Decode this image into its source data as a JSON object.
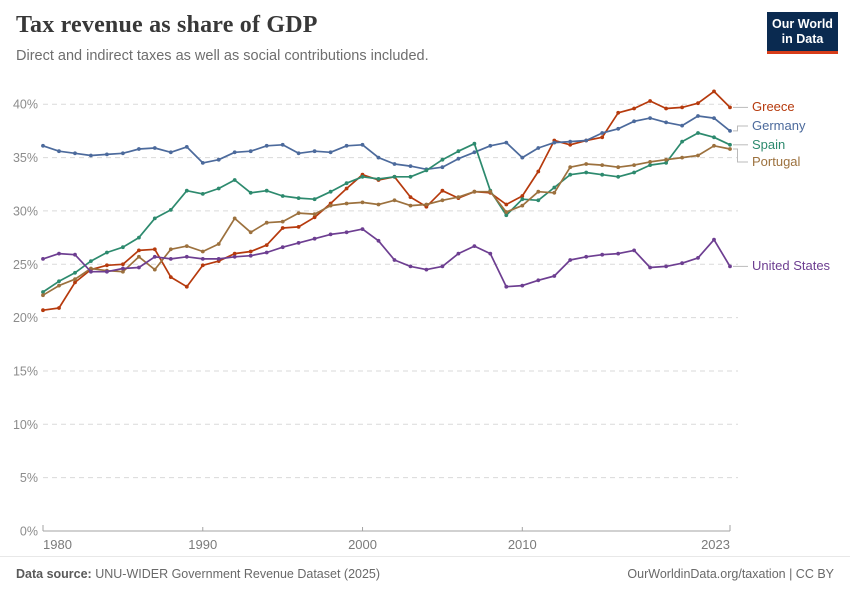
{
  "header": {
    "title": "Tax revenue as share of GDP",
    "subtitle": "Direct and indirect taxes as well as social contributions included."
  },
  "logo": {
    "line1": "Our World",
    "line2": "in Data",
    "bg_color": "#0a2a50",
    "accent_color": "#d73c19"
  },
  "chart_data": {
    "type": "line",
    "title": "Tax revenue as share of GDP",
    "xlabel": "",
    "ylabel": "",
    "x": [
      1980,
      1981,
      1982,
      1983,
      1984,
      1985,
      1986,
      1987,
      1988,
      1989,
      1990,
      1991,
      1992,
      1993,
      1994,
      1995,
      1996,
      1997,
      1998,
      1999,
      2000,
      2001,
      2002,
      2003,
      2004,
      2005,
      2006,
      2007,
      2008,
      2009,
      2010,
      2011,
      2012,
      2013,
      2014,
      2015,
      2016,
      2017,
      2018,
      2019,
      2020,
      2021,
      2022,
      2023
    ],
    "x_ticks": [
      1980,
      1990,
      2000,
      2010,
      2023
    ],
    "y_ticks": [
      0,
      5,
      10,
      15,
      20,
      25,
      30,
      35,
      40
    ],
    "y_tick_suffix": "%",
    "ylim": [
      0,
      42
    ],
    "grid": "horizontal-dashed",
    "legend_position": "right",
    "series": [
      {
        "name": "Greece",
        "color": "#B63A0D",
        "values": [
          20.7,
          20.9,
          23.3,
          24.5,
          24.9,
          25.0,
          26.3,
          26.4,
          23.8,
          22.9,
          24.9,
          25.3,
          26.0,
          26.2,
          26.8,
          28.4,
          28.5,
          29.4,
          30.7,
          32.1,
          33.4,
          32.9,
          33.2,
          31.3,
          30.4,
          31.9,
          31.2,
          31.8,
          31.7,
          30.6,
          31.4,
          33.7,
          36.6,
          36.2,
          36.6,
          36.9,
          39.2,
          39.6,
          40.3,
          39.6,
          39.7,
          40.1,
          41.2,
          39.7
        ]
      },
      {
        "name": "Germany",
        "color": "#4C6A9C",
        "values": [
          36.1,
          35.6,
          35.4,
          35.2,
          35.3,
          35.4,
          35.8,
          35.9,
          35.5,
          36.0,
          34.5,
          34.8,
          35.5,
          35.6,
          36.1,
          36.2,
          35.4,
          35.6,
          35.5,
          36.1,
          36.2,
          35.0,
          34.4,
          34.2,
          33.9,
          34.1,
          34.9,
          35.5,
          36.1,
          36.4,
          35.0,
          35.9,
          36.4,
          36.5,
          36.6,
          37.3,
          37.7,
          38.4,
          38.7,
          38.3,
          38.0,
          38.9,
          38.7,
          37.5
        ]
      },
      {
        "name": "Spain",
        "color": "#2D8A6E",
        "values": [
          22.4,
          23.4,
          24.2,
          25.3,
          26.1,
          26.6,
          27.5,
          29.3,
          30.1,
          31.9,
          31.6,
          32.1,
          32.9,
          31.7,
          31.9,
          31.4,
          31.2,
          31.1,
          31.8,
          32.6,
          33.2,
          33.0,
          33.2,
          33.2,
          33.8,
          34.8,
          35.6,
          36.3,
          31.9,
          29.6,
          31.1,
          31.0,
          32.2,
          33.4,
          33.6,
          33.4,
          33.2,
          33.6,
          34.3,
          34.5,
          36.5,
          37.3,
          36.9,
          36.2
        ]
      },
      {
        "name": "Portugal",
        "color": "#9C713E",
        "values": [
          22.1,
          23.0,
          23.6,
          24.6,
          24.4,
          24.3,
          25.7,
          24.5,
          26.4,
          26.7,
          26.2,
          26.9,
          29.3,
          28.0,
          28.9,
          29.0,
          29.8,
          29.7,
          30.5,
          30.7,
          30.8,
          30.6,
          31.0,
          30.5,
          30.6,
          31.0,
          31.3,
          31.8,
          31.8,
          29.9,
          30.5,
          31.8,
          31.7,
          34.1,
          34.4,
          34.3,
          34.1,
          34.3,
          34.6,
          34.8,
          35.0,
          35.2,
          36.1,
          35.8
        ]
      },
      {
        "name": "United States",
        "color": "#6D3E91",
        "values": [
          25.5,
          26.0,
          25.9,
          24.3,
          24.3,
          24.6,
          24.7,
          25.7,
          25.5,
          25.7,
          25.5,
          25.5,
          25.7,
          25.8,
          26.1,
          26.6,
          27.0,
          27.4,
          27.8,
          28.0,
          28.3,
          27.2,
          25.4,
          24.8,
          24.5,
          24.8,
          26.0,
          26.7,
          26.0,
          22.9,
          23.0,
          23.5,
          23.9,
          25.4,
          25.7,
          25.9,
          26.0,
          26.3,
          24.7,
          24.8,
          25.1,
          25.6,
          27.3,
          24.8
        ]
      }
    ]
  },
  "footer": {
    "source_prefix": "Data source:",
    "source": " UNU-WIDER Government Revenue Dataset (2025)",
    "credit": "OurWorldinData.org/taxation | CC BY"
  }
}
